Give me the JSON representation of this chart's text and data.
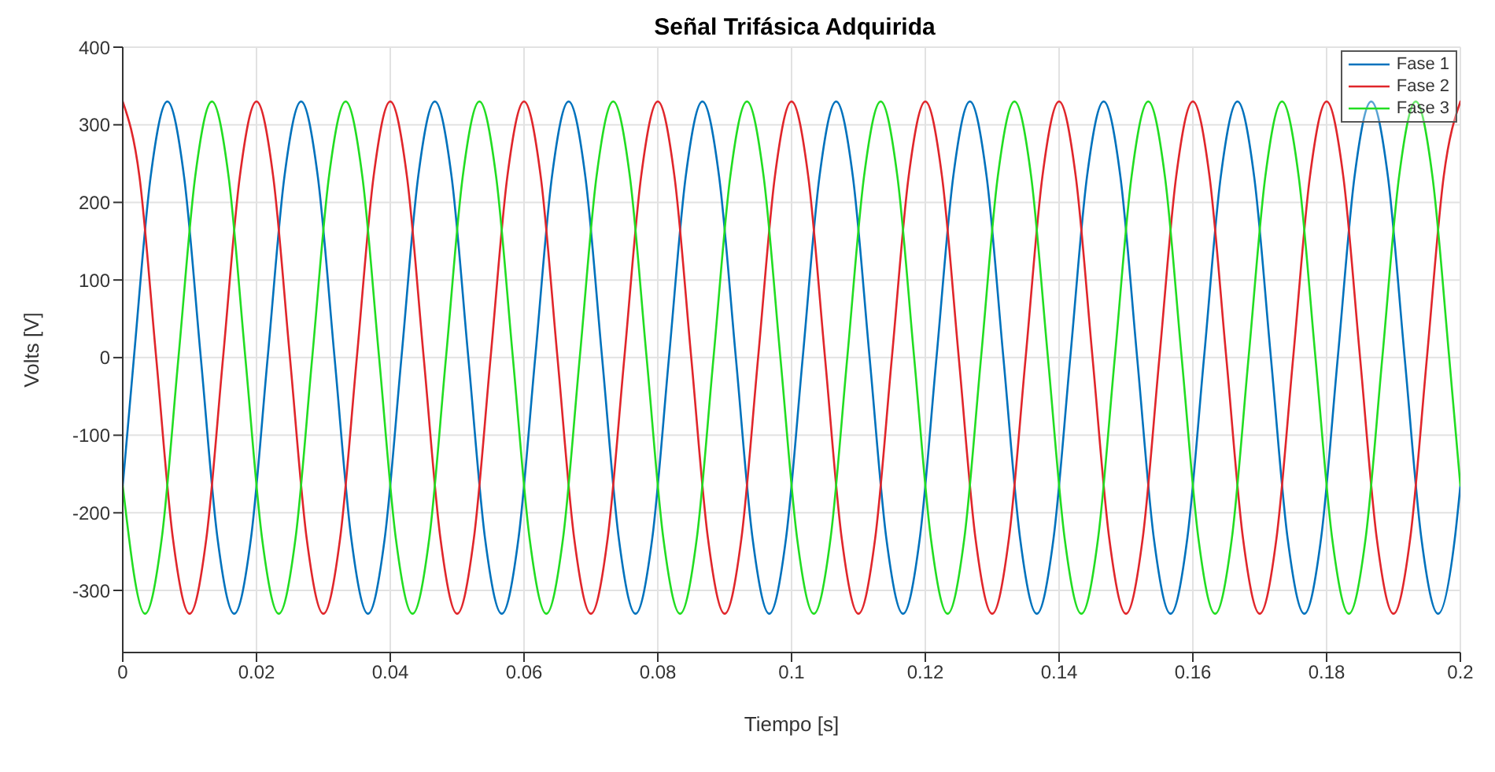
{
  "chart_data": {
    "type": "line",
    "title": "Señal Trifásica Adquirida",
    "xlabel": "Tiempo [s]",
    "ylabel": "Volts [V]",
    "xlim": [
      0,
      0.2
    ],
    "xticks": [
      0,
      0.02,
      0.04,
      0.06,
      0.08,
      0.1,
      0.12,
      0.14,
      0.16,
      0.18,
      0.2
    ],
    "ylim": [
      -380,
      400
    ],
    "yticks": [
      -300,
      -200,
      -100,
      0,
      100,
      200,
      300,
      400
    ],
    "grid": true,
    "legend": "top right",
    "series": [
      {
        "name": "Fase 1",
        "color": "#0072bd",
        "x": [
          0,
          0.00167,
          0.00417,
          0.00667,
          0.00917,
          0.01167,
          0.01417,
          0.01667,
          0.01917,
          0.02167,
          0.02417,
          0.02667,
          0.02917,
          0.03167,
          0.03417,
          0.03667,
          0.03917,
          0.04167,
          0.04417,
          0.04667,
          0.04917,
          0.05167,
          0.05417,
          0.05667,
          0.05917,
          0.06167,
          0.06417,
          0.06667,
          0.06917,
          0.07167,
          0.07417,
          0.07667,
          0.07917,
          0.08167,
          0.08417,
          0.08667,
          0.08917,
          0.09167,
          0.09417,
          0.09667,
          0.09917,
          0.10167,
          0.10417,
          0.10667,
          0.10917,
          0.11167,
          0.11417,
          0.11667,
          0.11917,
          0.12167,
          0.12417,
          0.12667,
          0.12917,
          0.13167,
          0.13417,
          0.13667,
          0.13917,
          0.14167,
          0.14417,
          0.14667,
          0.14917,
          0.15167,
          0.15417,
          0.15667,
          0.15917,
          0.16167,
          0.16417,
          0.16667,
          0.16917,
          0.17167,
          0.17417,
          0.17667,
          0.17917,
          0.18167,
          0.18417,
          0.18667,
          0.18917,
          0.19167,
          0.19417,
          0.19667,
          0.19917,
          0.2
        ],
        "values": [
          -165,
          0,
          233,
          330,
          233,
          0,
          -233,
          -330,
          -233,
          0,
          233,
          330,
          233,
          0,
          -233,
          -330,
          -233,
          0,
          233,
          330,
          233,
          0,
          -233,
          -330,
          -233,
          0,
          233,
          330,
          233,
          0,
          -233,
          -330,
          -233,
          0,
          233,
          330,
          233,
          0,
          -233,
          -330,
          -233,
          0,
          233,
          330,
          233,
          0,
          -233,
          -330,
          -233,
          0,
          233,
          330,
          233,
          0,
          -233,
          -330,
          -233,
          0,
          233,
          330,
          233,
          0,
          -233,
          -330,
          -233,
          0,
          233,
          330,
          233,
          0,
          -233,
          -330,
          -233,
          0,
          233,
          330,
          233,
          0,
          -233,
          -330,
          -233,
          -165
        ]
      },
      {
        "name": "Fase 2",
        "color": "#e0262b",
        "x": [
          0,
          0.0025,
          0.005,
          0.0075,
          0.01,
          0.0125,
          0.015,
          0.0175,
          0.02,
          0.0225,
          0.025,
          0.0275,
          0.03,
          0.0325,
          0.035,
          0.0375,
          0.04,
          0.0425,
          0.045,
          0.0475,
          0.05,
          0.0525,
          0.055,
          0.0575,
          0.06,
          0.0625,
          0.065,
          0.0675,
          0.07,
          0.0725,
          0.075,
          0.0775,
          0.08,
          0.0825,
          0.085,
          0.0875,
          0.09,
          0.0925,
          0.095,
          0.0975,
          0.1,
          0.1025,
          0.105,
          0.1075,
          0.11,
          0.1125,
          0.115,
          0.1175,
          0.12,
          0.1225,
          0.125,
          0.1275,
          0.13,
          0.1325,
          0.135,
          0.1375,
          0.14,
          0.1425,
          0.145,
          0.1475,
          0.15,
          0.1525,
          0.155,
          0.1575,
          0.16,
          0.1625,
          0.165,
          0.1675,
          0.17,
          0.1725,
          0.175,
          0.1775,
          0.18,
          0.1825,
          0.185,
          0.1875,
          0.19,
          0.1925,
          0.195,
          0.1975,
          0.2
        ],
        "values": [
          330,
          233,
          0,
          -233,
          -330,
          -233,
          0,
          233,
          330,
          233,
          0,
          -233,
          -330,
          -233,
          0,
          233,
          330,
          233,
          0,
          -233,
          -330,
          -233,
          0,
          233,
          330,
          233,
          0,
          -233,
          -330,
          -233,
          0,
          233,
          330,
          233,
          0,
          -233,
          -330,
          -233,
          0,
          233,
          330,
          233,
          0,
          -233,
          -330,
          -233,
          0,
          233,
          330,
          233,
          0,
          -233,
          -330,
          -233,
          0,
          233,
          330,
          233,
          0,
          -233,
          -330,
          -233,
          0,
          233,
          330,
          233,
          0,
          -233,
          -330,
          -233,
          0,
          233,
          330,
          233,
          0,
          -233,
          -330,
          -233,
          0,
          233,
          330
        ]
      },
      {
        "name": "Fase 3",
        "color": "#22dd22",
        "x": [
          0,
          0.00333,
          0.00583,
          0.00833,
          0.01083,
          0.01333,
          0.01583,
          0.01833,
          0.02083,
          0.02333,
          0.02583,
          0.02833,
          0.03083,
          0.03333,
          0.03583,
          0.03833,
          0.04083,
          0.04333,
          0.04583,
          0.04833,
          0.05083,
          0.05333,
          0.05583,
          0.05833,
          0.06083,
          0.06333,
          0.06583,
          0.06833,
          0.07083,
          0.07333,
          0.07583,
          0.07833,
          0.08083,
          0.08333,
          0.08583,
          0.08833,
          0.09083,
          0.09333,
          0.09583,
          0.09833,
          0.10083,
          0.10333,
          0.10583,
          0.10833,
          0.11083,
          0.11333,
          0.11583,
          0.11833,
          0.12083,
          0.12333,
          0.12583,
          0.12833,
          0.13083,
          0.13333,
          0.13583,
          0.13833,
          0.14083,
          0.14333,
          0.14583,
          0.14833,
          0.15083,
          0.15333,
          0.15583,
          0.15833,
          0.16083,
          0.16333,
          0.16583,
          0.16833,
          0.17083,
          0.17333,
          0.17583,
          0.17833,
          0.18083,
          0.18333,
          0.18583,
          0.18833,
          0.19083,
          0.19333,
          0.19583,
          0.19833,
          0.2
        ],
        "values": [
          -165,
          -330,
          -233,
          0,
          233,
          330,
          233,
          0,
          -233,
          -330,
          -233,
          0,
          233,
          330,
          233,
          0,
          -233,
          -330,
          -233,
          0,
          233,
          330,
          233,
          0,
          -233,
          -330,
          -233,
          0,
          233,
          330,
          233,
          0,
          -233,
          -330,
          -233,
          0,
          233,
          330,
          233,
          0,
          -233,
          -330,
          -233,
          0,
          233,
          330,
          233,
          0,
          -233,
          -330,
          -233,
          0,
          233,
          330,
          233,
          0,
          -233,
          -330,
          -233,
          0,
          233,
          330,
          233,
          0,
          -233,
          -330,
          -233,
          0,
          233,
          330,
          233,
          0,
          -233,
          -330,
          -233,
          0,
          233,
          330,
          233,
          0,
          -165
        ]
      }
    ]
  }
}
